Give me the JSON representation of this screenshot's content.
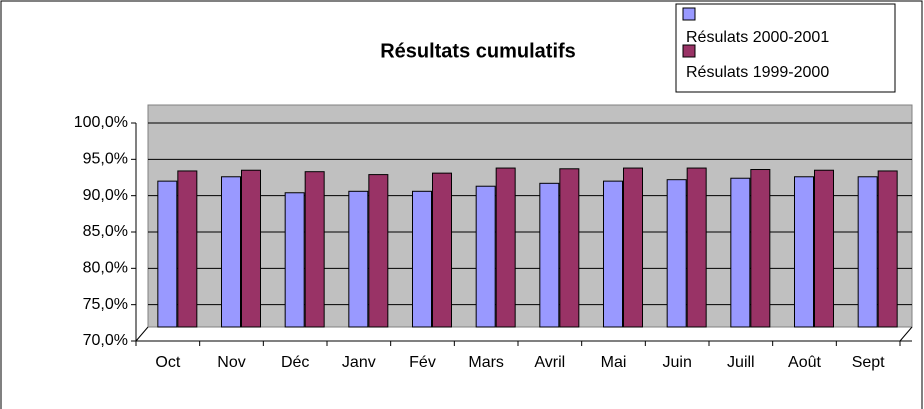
{
  "chart_data": {
    "type": "bar",
    "title": "Résultats cumulatifs",
    "categories": [
      "Oct",
      "Nov",
      "Déc",
      "Janv",
      "Fév",
      "Mars",
      "Avril",
      "Mai",
      "Juin",
      "Juill",
      "Août",
      "Sept"
    ],
    "series": [
      {
        "name": "Résulats 2000-2001",
        "color": "#9999ff",
        "values": [
          92.0,
          92.6,
          90.4,
          90.6,
          90.6,
          91.3,
          91.7,
          92.0,
          92.2,
          92.4,
          92.6,
          92.6
        ]
      },
      {
        "name": "Résulats 1999-2000",
        "color": "#993366",
        "values": [
          93.4,
          93.5,
          93.3,
          92.9,
          93.1,
          93.8,
          93.7,
          93.8,
          93.8,
          93.6,
          93.5,
          93.4
        ]
      }
    ],
    "ylim": [
      70,
      100
    ],
    "yticks": [
      {
        "value": 70,
        "label": "70,0%"
      },
      {
        "value": 75,
        "label": "75,0%"
      },
      {
        "value": 80,
        "label": "80,0%"
      },
      {
        "value": 85,
        "label": "85,0%"
      },
      {
        "value": 90,
        "label": "90,0%"
      },
      {
        "value": 95,
        "label": "95,0%"
      },
      {
        "value": 100,
        "label": "100,0%"
      }
    ],
    "grid": true,
    "legend": "top-right"
  }
}
